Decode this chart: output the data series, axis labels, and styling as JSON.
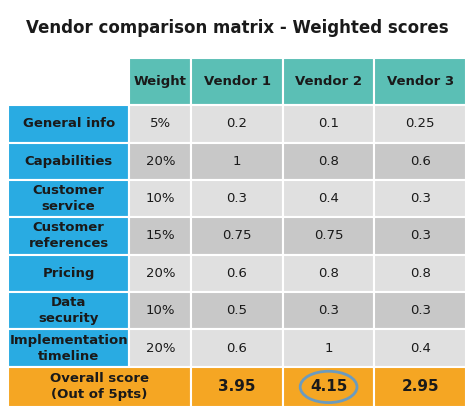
{
  "title": "Vendor comparison matrix - Weighted scores",
  "header_row": [
    "",
    "Weight",
    "Vendor 1",
    "Vendor 2",
    "Vendor 3"
  ],
  "rows": [
    {
      "label": "General info",
      "weight": "5%",
      "v1": "0.2",
      "v2": "0.1",
      "v3": "0.25"
    },
    {
      "label": "Capabilities",
      "weight": "20%",
      "v1": "1",
      "v2": "0.8",
      "v3": "0.6"
    },
    {
      "label": "Customer\nservice",
      "weight": "10%",
      "v1": "0.3",
      "v2": "0.4",
      "v3": "0.3"
    },
    {
      "label": "Customer\nreferences",
      "weight": "15%",
      "v1": "0.75",
      "v2": "0.75",
      "v3": "0.3"
    },
    {
      "label": "Pricing",
      "weight": "20%",
      "v1": "0.6",
      "v2": "0.8",
      "v3": "0.8"
    },
    {
      "label": "Data\nsecurity",
      "weight": "10%",
      "v1": "0.5",
      "v2": "0.3",
      "v3": "0.3"
    },
    {
      "label": "Implementation\ntimeline",
      "weight": "20%",
      "v1": "0.6",
      "v2": "1",
      "v3": "0.4"
    }
  ],
  "footer": {
    "label": "Overall score\n(Out of 5pts)",
    "v1": "3.95",
    "v2": "4.15",
    "v3": "2.95"
  },
  "colors": {
    "header_bg": "#5BBFB5",
    "header_text": "#1a1a1a",
    "row_label_bg": "#29ABE2",
    "row_label_text": "#1a1a1a",
    "data_bg_light": "#E0E0E0",
    "data_bg_dark": "#C8C8C8",
    "footer_bg": "#F5A623",
    "footer_text": "#1a1a1a",
    "title_color": "#1a1a1a",
    "circle_color": "#6B9BBF",
    "background": "#ffffff",
    "border": "#ffffff"
  },
  "figw": 4.74,
  "figh": 4.15,
  "dpi": 100,
  "title_fontsize": 12,
  "header_fontsize": 9.5,
  "cell_fontsize": 9.5,
  "label_fontsize": 9.5,
  "footer_label_fontsize": 9.5,
  "footer_val_fontsize": 11
}
